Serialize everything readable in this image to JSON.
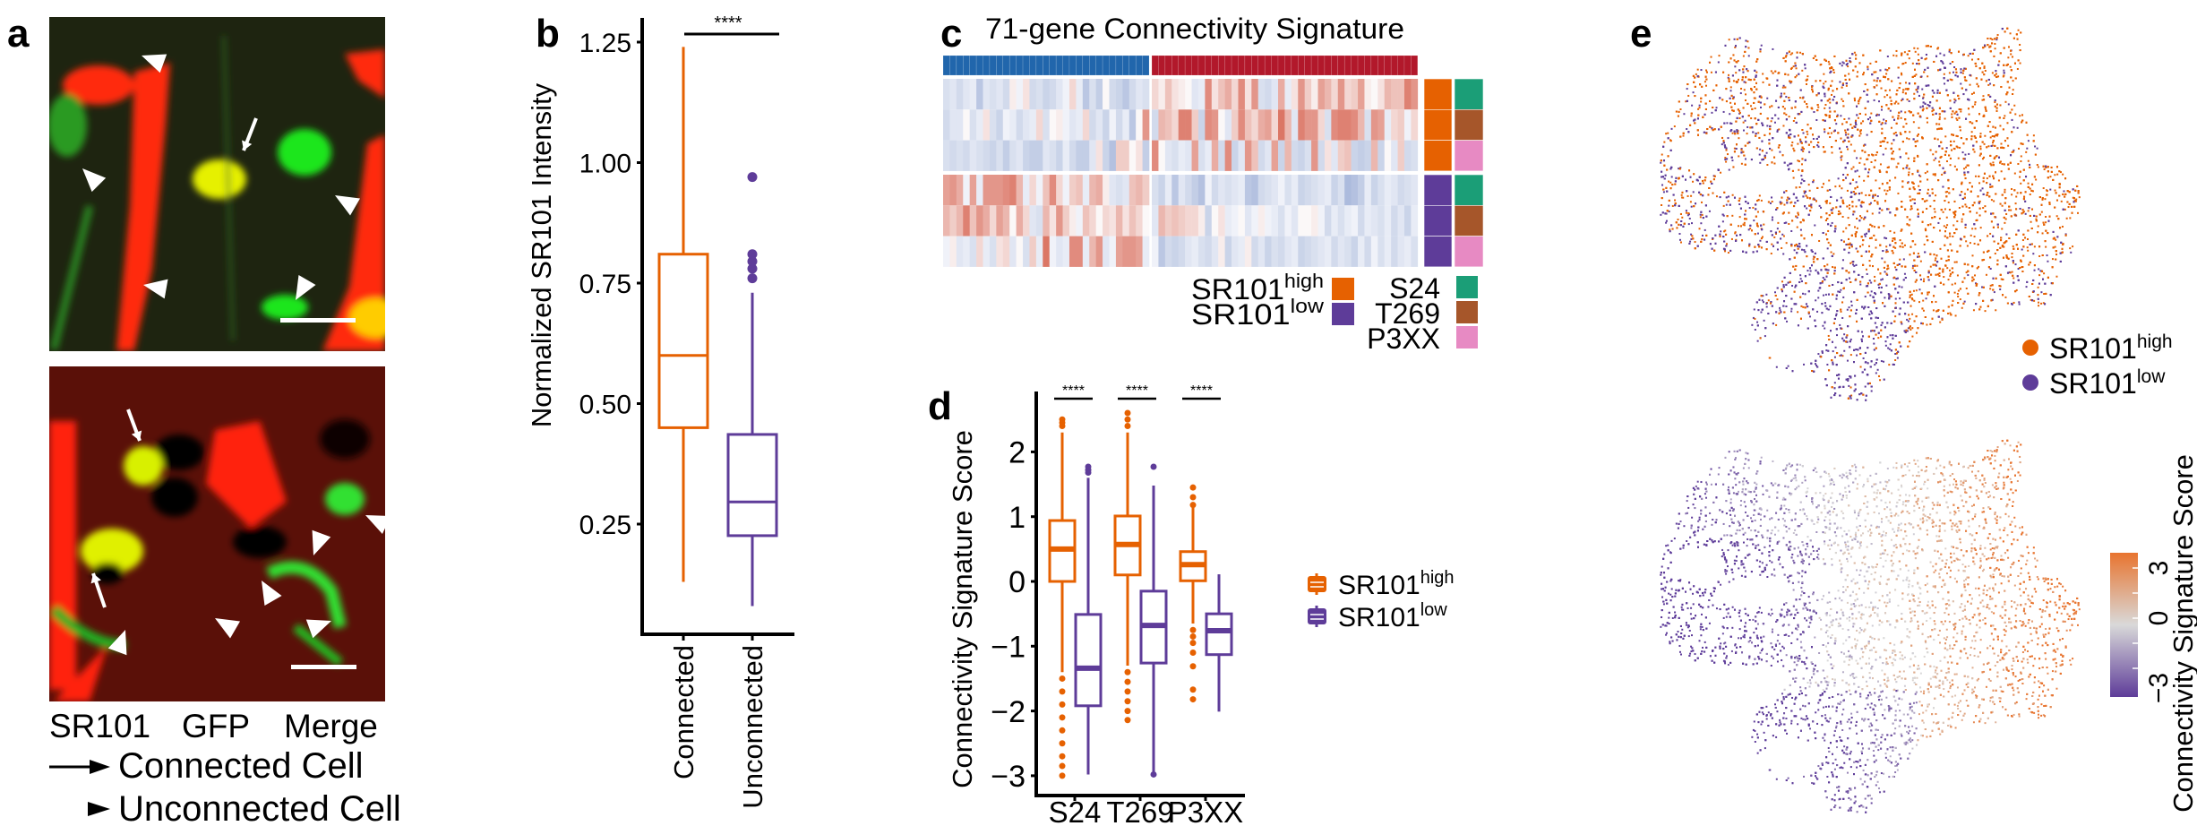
{
  "panel_labels": {
    "a": "a",
    "b": "b",
    "c": "c",
    "d": "d",
    "e": "e"
  },
  "panel_a": {
    "channels": [
      {
        "label": "SR101",
        "color": "#ff1a1a"
      },
      {
        "label": "GFP",
        "color": "#00e01a"
      },
      {
        "label": "Merge",
        "color": "#ffd633"
      }
    ],
    "legend": [
      {
        "symbol": "arrow",
        "label": "Connected Cell"
      },
      {
        "symbol": "arrowhead",
        "label": "Unconnected Cell"
      }
    ]
  },
  "colors": {
    "high": "#e66101",
    "low": "#5e3c99",
    "S24": "#1b9e77",
    "T269": "#a6562a",
    "P3XX": "#e78ac3",
    "gene_up": "#b2182b",
    "gene_down": "#2166ac"
  },
  "chart_data": [
    {
      "panel": "b",
      "type": "box",
      "ylabel": "Normalized SR101 Intensity",
      "ylim": [
        0.02,
        1.3
      ],
      "yticks": [
        "0.25",
        "0.50",
        "0.75",
        "1.00",
        "1.25"
      ],
      "categories": [
        "Connected",
        "Unconnected"
      ],
      "significance": "****",
      "boxes": [
        {
          "category": "Connected",
          "color": "#e66101",
          "whisker_low": 0.13,
          "q1": 0.45,
          "median": 0.6,
          "q3": 0.81,
          "whisker_high": 1.24,
          "outliers": []
        },
        {
          "category": "Unconnected",
          "color": "#5e3c99",
          "whisker_low": 0.08,
          "q1": 0.226,
          "median": 0.296,
          "q3": 0.436,
          "whisker_high": 0.73,
          "outliers": [
            0.76,
            0.78,
            0.795,
            0.81,
            0.97
          ]
        }
      ]
    },
    {
      "panel": "c",
      "type": "heatmap",
      "title": "71-gene Connectivity Signature",
      "column_groups": [
        {
          "count": 31,
          "color": "#2166ac"
        },
        {
          "count": 40,
          "color": "#b2182b"
        }
      ],
      "rows": [
        {
          "group": "SR101high",
          "sample": "S24",
          "values": [
            -0.4,
            -0.3,
            -0.5,
            -0.3,
            -0.2,
            -0.8,
            -0.3,
            -0.4,
            -0.3,
            -0.5,
            0.1,
            -0.1,
            0.2,
            -0.5,
            -0.4,
            -0.6,
            -0.5,
            -0.3,
            -0.1,
            0.3,
            -0.2,
            -0.8,
            -0.4,
            -0.7,
            0.0,
            -0.5,
            -0.6,
            -0.8,
            -0.5,
            -0.3,
            -0.4,
            0.3,
            0.1,
            0.5,
            0.2,
            0.1,
            0.0,
            -0.3,
            -0.2,
            1.0,
            0.2,
            0.5,
            0.7,
            0.3,
            1.0,
            0.2,
            0.9,
            -0.4,
            -0.5,
            -0.3,
            0.7,
            -0.2,
            0.2,
            0.9,
            0.4,
            0.1,
            0.8,
            0.6,
            0.3,
            0.9,
            0.3,
            0.4,
            0.8,
            0.1,
            0.0,
            0.2,
            0.6,
            0.5,
            0.5,
            1.1,
            0.9
          ]
        },
        {
          "group": "SR101high",
          "sample": "T269",
          "values": [
            -0.5,
            -0.3,
            -0.3,
            0.0,
            -0.4,
            -0.2,
            0.2,
            -0.4,
            -0.6,
            -0.1,
            -0.2,
            -0.5,
            -0.3,
            -0.2,
            0.3,
            -0.4,
            0.0,
            0.1,
            -0.1,
            -0.3,
            -0.2,
            0.3,
            -0.5,
            -0.3,
            -0.6,
            -0.1,
            -0.5,
            -0.2,
            -0.8,
            0.0,
            0.9,
            -0.5,
            0.6,
            0.5,
            0.3,
            1.1,
            1.1,
            0.4,
            -0.6,
            1.0,
            0.9,
            0.0,
            -0.3,
            0.4,
            1.0,
            0.5,
            0.3,
            0.7,
            0.8,
            0.3,
            1.2,
            0.6,
            -0.3,
            1.1,
            0.9,
            0.9,
            0.3,
            -0.4,
            1.0,
            1.1,
            1.1,
            1.0,
            0.6,
            -0.4,
            0.9,
            0.8,
            -0.2,
            0.3,
            0.4,
            -0.1,
            0.3
          ]
        },
        {
          "group": "SR101high",
          "sample": "P3XX",
          "values": [
            -0.4,
            -0.5,
            -0.4,
            -0.5,
            -0.3,
            -0.4,
            -0.5,
            -0.6,
            -0.4,
            -0.7,
            -0.4,
            -0.3,
            -0.6,
            -0.7,
            -0.7,
            -0.3,
            -0.4,
            -0.6,
            -0.2,
            -0.5,
            -0.7,
            -0.7,
            -0.3,
            0.2,
            -0.6,
            -0.9,
            0.4,
            0.4,
            0.0,
            0.2,
            -0.7,
            1.0,
            0.0,
            -0.3,
            -0.4,
            -0.2,
            -0.3,
            0.8,
            -0.4,
            -0.2,
            0.7,
            -0.5,
            1.0,
            -0.6,
            -0.3,
            0.9,
            0.5,
            -0.5,
            -0.3,
            0.8,
            -0.6,
            0.6,
            -0.5,
            -0.6,
            -0.4,
            0.9,
            -0.5,
            0.2,
            -0.3,
            0.4,
            0.5,
            -0.6,
            -0.7,
            -0.6,
            0.6,
            -0.6,
            0.0,
            -0.3,
            0.4,
            -0.5,
            -0.4
          ]
        },
        {
          "group": "SR101low",
          "sample": "S24",
          "values": [
            0.8,
            0.9,
            0.7,
            -0.1,
            0.8,
            -0.2,
            0.9,
            0.9,
            0.9,
            1.0,
            1.1,
            0.6,
            -0.2,
            0.3,
            -0.1,
            0.5,
            1.0,
            0.3,
            -0.1,
            0.4,
            0.5,
            -0.2,
            0.6,
            0.7,
            0.1,
            -0.3,
            -0.4,
            -0.3,
            0.5,
            0.6,
            0.4,
            -0.4,
            -0.6,
            -0.2,
            -0.8,
            -0.3,
            -0.5,
            -0.7,
            -0.9,
            -0.1,
            -0.5,
            -0.3,
            -0.4,
            -0.3,
            -0.2,
            -0.8,
            -0.9,
            -0.5,
            -0.4,
            -0.3,
            -0.1,
            -0.4,
            -0.2,
            -0.6,
            -0.5,
            -0.4,
            -0.3,
            -0.2,
            -0.6,
            -0.4,
            -1.0,
            -0.9,
            -0.7,
            -0.2,
            -0.6,
            -0.4,
            -0.2,
            -0.3,
            -0.5,
            -0.4,
            -0.3
          ]
        },
        {
          "group": "SR101low",
          "sample": "T269",
          "values": [
            0.6,
            0.4,
            0.6,
            1.1,
            0.5,
            0.9,
            0.7,
            0.3,
            0.8,
            0.6,
            0.0,
            0.7,
            0.3,
            -0.3,
            -0.4,
            0.6,
            0.2,
            0.9,
            0.4,
            0.1,
            -0.1,
            0.5,
            0.3,
            0.0,
            0.3,
            0.2,
            0.6,
            0.2,
            0.5,
            0.3,
            0.0,
            -0.3,
            0.6,
            0.4,
            0.5,
            0.4,
            0.3,
            0.3,
            0.1,
            -0.6,
            0.0,
            0.2,
            -0.2,
            -0.1,
            0.0,
            -0.3,
            -0.1,
            0.1,
            -0.1,
            -0.2,
            -0.4,
            -0.1,
            -0.3,
            0.0,
            0.0,
            0.1,
            -0.1,
            -0.5,
            -0.2,
            -0.4,
            -0.2,
            -0.1,
            -0.5,
            -0.2,
            -0.3,
            -0.4,
            -0.2,
            -0.5,
            -0.3,
            -0.6,
            -0.2
          ]
        },
        {
          "group": "SR101low",
          "sample": "P3XX",
          "values": [
            -0.1,
            0.1,
            -0.3,
            -0.2,
            -0.4,
            0.3,
            -0.2,
            -0.4,
            0.2,
            0.3,
            -0.3,
            0.0,
            -0.4,
            0.4,
            -0.2,
            1.2,
            -0.1,
            -0.3,
            -0.2,
            1.0,
            1.0,
            -0.2,
            0.6,
            0.9,
            -0.3,
            -0.1,
            0.8,
            0.9,
            0.9,
            0.8,
            -0.2,
            -0.1,
            -0.8,
            -0.5,
            -0.6,
            -0.5,
            -0.3,
            -0.2,
            -0.4,
            -0.5,
            -0.3,
            0.1,
            -0.6,
            -0.3,
            -0.2,
            0.1,
            -0.5,
            -0.3,
            -0.6,
            -0.4,
            -0.5,
            -0.3,
            -0.2,
            -0.6,
            -0.5,
            -0.4,
            -0.3,
            -0.2,
            -0.5,
            -0.3,
            -0.4,
            -0.6,
            -0.2,
            -0.5,
            -0.1,
            -0.4,
            -0.2,
            -0.5,
            -0.3,
            -0.2,
            -0.4
          ]
        }
      ],
      "legend_groups": [
        {
          "label": "SR101",
          "sup": "high",
          "color": "#e66101"
        },
        {
          "label": "SR101",
          "sup": "low",
          "color": "#5e3c99"
        }
      ],
      "legend_samples": [
        {
          "label": "S24",
          "color": "#1b9e77"
        },
        {
          "label": "T269",
          "color": "#a6562a"
        },
        {
          "label": "P3XX",
          "color": "#e78ac3"
        }
      ]
    },
    {
      "panel": "d",
      "type": "box",
      "ylabel": "Connectivity Signature Score",
      "ylim": [
        -3.31,
        2.92
      ],
      "yticks": [
        "−3",
        "−2",
        "−1",
        "0",
        "1",
        "2"
      ],
      "categories": [
        "S24",
        "T269",
        "P3XX"
      ],
      "significance": [
        "****",
        "****",
        "****"
      ],
      "legend": [
        {
          "label": "SR101",
          "sup": "high",
          "color": "#e66101"
        },
        {
          "label": "SR101",
          "sup": "low",
          "color": "#5e3c99"
        }
      ],
      "boxes": [
        {
          "category": "S24",
          "group": "high",
          "color": "#e66101",
          "whisker_low": -1.4,
          "q1": 0.0,
          "median": 0.5,
          "q3": 0.94,
          "whisker_high": 2.3,
          "outliers": [
            2.4,
            2.45,
            2.5,
            -1.5,
            -1.7,
            -1.9,
            -2.1,
            -2.3,
            -2.5,
            -2.7,
            -2.85,
            -3.0
          ]
        },
        {
          "category": "S24",
          "group": "low",
          "color": "#5e3c99",
          "whisker_low": -2.98,
          "q1": -1.92,
          "median": -1.34,
          "q3": -0.51,
          "whisker_high": 1.6,
          "outliers": [
            1.68,
            1.72,
            1.77
          ]
        },
        {
          "category": "T269",
          "group": "high",
          "color": "#e66101",
          "whisker_low": -1.3,
          "q1": 0.1,
          "median": 0.57,
          "q3": 1.01,
          "whisker_high": 2.3,
          "outliers": [
            2.4,
            2.5,
            2.6,
            -1.4,
            -1.55,
            -1.7,
            -1.85,
            -2.0,
            -2.14
          ]
        },
        {
          "category": "T269",
          "group": "low",
          "color": "#5e3c99",
          "whisker_low": -2.95,
          "q1": -1.26,
          "median": -0.68,
          "q3": -0.15,
          "whisker_high": 1.48,
          "outliers": [
            1.77,
            -2.98
          ]
        },
        {
          "category": "P3XX",
          "group": "high",
          "color": "#e66101",
          "whisker_low": -0.65,
          "q1": 0.01,
          "median": 0.26,
          "q3": 0.46,
          "whisker_high": 1.14,
          "outliers": [
            1.18,
            1.3,
            1.45,
            -0.75,
            -0.85,
            -0.95,
            -1.1,
            -1.31,
            -1.67,
            -1.82
          ]
        },
        {
          "category": "P3XX",
          "group": "low",
          "color": "#5e3c99",
          "whisker_low": -2.01,
          "q1": -1.13,
          "median": -0.76,
          "q3": -0.5,
          "whisker_high": 0.11,
          "outliers": []
        }
      ]
    },
    {
      "panel": "e-top",
      "type": "scatter",
      "legend": [
        {
          "label": "SR101",
          "sup": "high",
          "color": "#e66101"
        },
        {
          "label": "SR101",
          "sup": "low",
          "color": "#5e3c99"
        }
      ]
    },
    {
      "panel": "e-bottom",
      "type": "scatter",
      "colorbar": {
        "title": "Connectivity Signature Score",
        "range": [
          -3,
          3
        ],
        "tick_labels": [
          "3",
          "0",
          "−3"
        ],
        "colors": {
          "low": "#5e3c99",
          "mid": "#d9d9d9",
          "high": "#e8742f"
        }
      }
    }
  ]
}
